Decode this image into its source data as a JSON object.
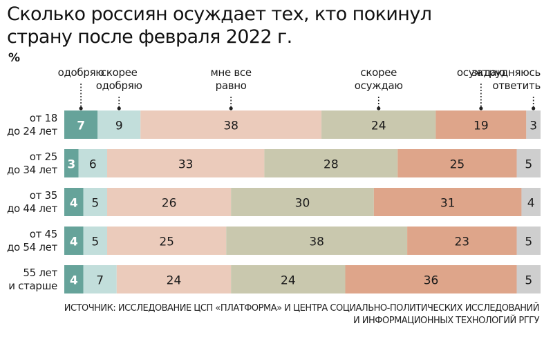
{
  "title": "Сколько россиян осуждает тех, кто покинул страну после февраля 2022 г.",
  "title_lines": [
    "Сколько россиян осуждает тех, кто покинул",
    "страну после февраля 2022 г."
  ],
  "unit": "%",
  "source_lines": [
    "ИСТОЧНИК: ИССЛЕДОВАНИЕ ЦСП «ПЛАТФОРМА» И ЦЕНТРА СОЦИАЛЬНО-ПОЛИТИЧЕСКИХ ИССЛЕДОВАНИЙ",
    "И ИНФОРМАЦИОННЫХ ТЕХНОЛОГИЙ РГГУ"
  ],
  "chart_data": {
    "type": "bar",
    "orientation": "horizontal",
    "stacked": true,
    "grid": false,
    "categories": [
      [
        "от 18",
        "до 24 лет"
      ],
      [
        "от 25",
        "до 34 лет"
      ],
      [
        "от 35",
        "до 44 лет"
      ],
      [
        "от 45",
        "до 54 лет"
      ],
      [
        "55 лет",
        "и старше"
      ]
    ],
    "series": [
      {
        "name": "одобряю",
        "label_lines": [
          "одобряю"
        ],
        "color": "#66a39a",
        "label_color": "#ffffff",
        "values": [
          7,
          3,
          4,
          4,
          4
        ]
      },
      {
        "name": "скорее одобряю",
        "label_lines": [
          "скорее",
          "одобряю"
        ],
        "color": "#c2dedb",
        "label_color": "#1a1a1a",
        "values": [
          9,
          6,
          5,
          5,
          7
        ]
      },
      {
        "name": "мне все равно",
        "label_lines": [
          "мне все",
          "равно"
        ],
        "color": "#ebcbbb",
        "label_color": "#1a1a1a",
        "values": [
          38,
          33,
          26,
          25,
          24
        ]
      },
      {
        "name": "скорее осуждаю",
        "label_lines": [
          "скорее",
          "осуждаю"
        ],
        "color": "#c9c8ae",
        "label_color": "#1a1a1a",
        "values": [
          24,
          28,
          30,
          38,
          24
        ]
      },
      {
        "name": "осуждаю",
        "label_lines": [
          "осуждаю"
        ],
        "color": "#dea58a",
        "label_color": "#1a1a1a",
        "values": [
          19,
          25,
          31,
          23,
          36
        ]
      },
      {
        "name": "затрудняюсь ответить",
        "label_lines": [
          "затрудняюсь",
          "ответить"
        ],
        "color": "#cecece",
        "label_color": "#1a1a1a",
        "values": [
          3,
          5,
          4,
          5,
          5
        ]
      }
    ],
    "legend_placement": "top",
    "colors": {
      "text": "#1a1a1a",
      "pointer": "#222222"
    }
  }
}
